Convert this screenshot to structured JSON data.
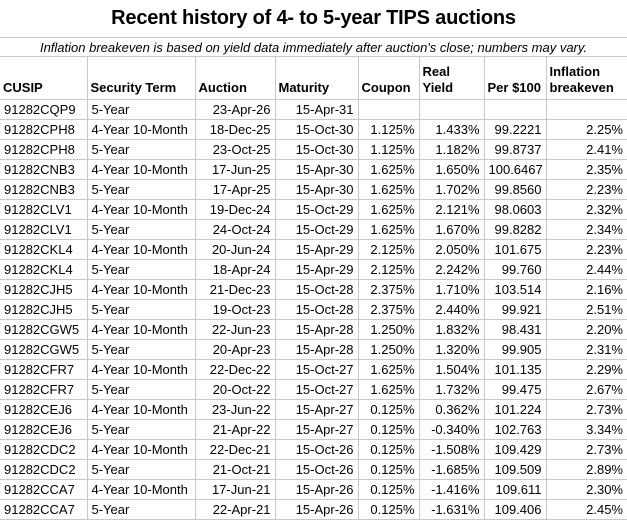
{
  "title": "Recent history of 4- to 5-year TIPS auctions",
  "subtitle": "Inflation breakeven is based on yield data immediately after auction's close; numbers may vary.",
  "colors": {
    "background": "#ffffff",
    "text": "#000000",
    "grid_line": "#c8c8c8"
  },
  "table": {
    "columns": [
      {
        "key": "cusip",
        "label": "CUSIP"
      },
      {
        "key": "term",
        "label": "Security Term"
      },
      {
        "key": "auction",
        "label": "Auction"
      },
      {
        "key": "maturity",
        "label": "Maturity"
      },
      {
        "key": "coupon",
        "label": "Coupon"
      },
      {
        "key": "real_yield",
        "label": "Real\nYield"
      },
      {
        "key": "per_100",
        "label": "Per $100"
      },
      {
        "key": "breakeven",
        "label": "Inflation\nbreakeven"
      }
    ],
    "rows": [
      {
        "cusip": "91282CQP9",
        "term": "5-Year",
        "auction": "23-Apr-26",
        "maturity": "15-Apr-31",
        "coupon": "",
        "real_yield": "",
        "per_100": "",
        "breakeven": ""
      },
      {
        "cusip": "91282CPH8",
        "term": "4-Year 10-Month",
        "auction": "18-Dec-25",
        "maturity": "15-Oct-30",
        "coupon": "1.125%",
        "real_yield": "1.433%",
        "per_100": "99.2221",
        "breakeven": "2.25%"
      },
      {
        "cusip": "91282CPH8",
        "term": "5-Year",
        "auction": "23-Oct-25",
        "maturity": "15-Oct-30",
        "coupon": "1.125%",
        "real_yield": "1.182%",
        "per_100": "99.8737",
        "breakeven": "2.41%"
      },
      {
        "cusip": "91282CNB3",
        "term": "4-Year 10-Month",
        "auction": "17-Jun-25",
        "maturity": "15-Apr-30",
        "coupon": "1.625%",
        "real_yield": "1.650%",
        "per_100": "100.6467",
        "breakeven": "2.35%"
      },
      {
        "cusip": "91282CNB3",
        "term": "5-Year",
        "auction": "17-Apr-25",
        "maturity": "15-Apr-30",
        "coupon": "1.625%",
        "real_yield": "1.702%",
        "per_100": "99.8560",
        "breakeven": "2.23%"
      },
      {
        "cusip": "91282CLV1",
        "term": "4-Year 10-Month",
        "auction": "19-Dec-24",
        "maturity": "15-Oct-29",
        "coupon": "1.625%",
        "real_yield": "2.121%",
        "per_100": "98.0603",
        "breakeven": "2.32%"
      },
      {
        "cusip": "91282CLV1",
        "term": "5-Year",
        "auction": "24-Oct-24",
        "maturity": "15-Oct-29",
        "coupon": "1.625%",
        "real_yield": "1.670%",
        "per_100": "99.8282",
        "breakeven": "2.34%"
      },
      {
        "cusip": "91282CKL4",
        "term": "4-Year 10-Month",
        "auction": "20-Jun-24",
        "maturity": "15-Apr-29",
        "coupon": "2.125%",
        "real_yield": "2.050%",
        "per_100": "101.675",
        "breakeven": "2.23%"
      },
      {
        "cusip": "91282CKL4",
        "term": "5-Year",
        "auction": "18-Apr-24",
        "maturity": "15-Apr-29",
        "coupon": "2.125%",
        "real_yield": "2.242%",
        "per_100": "99.760",
        "breakeven": "2.44%"
      },
      {
        "cusip": "91282CJH5",
        "term": "4-Year 10-Month",
        "auction": "21-Dec-23",
        "maturity": "15-Oct-28",
        "coupon": "2.375%",
        "real_yield": "1.710%",
        "per_100": "103.514",
        "breakeven": "2.16%"
      },
      {
        "cusip": "91282CJH5",
        "term": "5-Year",
        "auction": "19-Oct-23",
        "maturity": "15-Oct-28",
        "coupon": "2.375%",
        "real_yield": "2.440%",
        "per_100": "99.921",
        "breakeven": "2.51%"
      },
      {
        "cusip": "91282CGW5",
        "term": "4-Year 10-Month",
        "auction": "22-Jun-23",
        "maturity": "15-Apr-28",
        "coupon": "1.250%",
        "real_yield": "1.832%",
        "per_100": "98.431",
        "breakeven": "2.20%"
      },
      {
        "cusip": "91282CGW5",
        "term": "5-Year",
        "auction": "20-Apr-23",
        "maturity": "15-Apr-28",
        "coupon": "1.250%",
        "real_yield": "1.320%",
        "per_100": "99.905",
        "breakeven": "2.31%"
      },
      {
        "cusip": "91282CFR7",
        "term": "4-Year 10-Month",
        "auction": "22-Dec-22",
        "maturity": "15-Oct-27",
        "coupon": "1.625%",
        "real_yield": "1.504%",
        "per_100": "101.135",
        "breakeven": "2.29%"
      },
      {
        "cusip": "91282CFR7",
        "term": "5-Year",
        "auction": "20-Oct-22",
        "maturity": "15-Oct-27",
        "coupon": "1.625%",
        "real_yield": "1.732%",
        "per_100": "99.475",
        "breakeven": "2.67%"
      },
      {
        "cusip": "91282CEJ6",
        "term": "4-Year 10-Month",
        "auction": "23-Jun-22",
        "maturity": "15-Apr-27",
        "coupon": "0.125%",
        "real_yield": "0.362%",
        "per_100": "101.224",
        "breakeven": "2.73%"
      },
      {
        "cusip": "91282CEJ6",
        "term": "5-Year",
        "auction": "21-Apr-22",
        "maturity": "15-Apr-27",
        "coupon": "0.125%",
        "real_yield": "-0.340%",
        "per_100": "102.763",
        "breakeven": "3.34%"
      },
      {
        "cusip": "91282CDC2",
        "term": "4-Year 10-Month",
        "auction": "22-Dec-21",
        "maturity": "15-Oct-26",
        "coupon": "0.125%",
        "real_yield": "-1.508%",
        "per_100": "109.429",
        "breakeven": "2.73%"
      },
      {
        "cusip": "91282CDC2",
        "term": "5-Year",
        "auction": "21-Oct-21",
        "maturity": "15-Oct-26",
        "coupon": "0.125%",
        "real_yield": "-1.685%",
        "per_100": "109.509",
        "breakeven": "2.89%"
      },
      {
        "cusip": "91282CCA7",
        "term": "4-Year 10-Month",
        "auction": "17-Jun-21",
        "maturity": "15-Apr-26",
        "coupon": "0.125%",
        "real_yield": "-1.416%",
        "per_100": "109.611",
        "breakeven": "2.30%"
      },
      {
        "cusip": "91282CCA7",
        "term": "5-Year",
        "auction": "22-Apr-21",
        "maturity": "15-Apr-26",
        "coupon": "0.125%",
        "real_yield": "-1.631%",
        "per_100": "109.406",
        "breakeven": "2.45%"
      }
    ]
  }
}
